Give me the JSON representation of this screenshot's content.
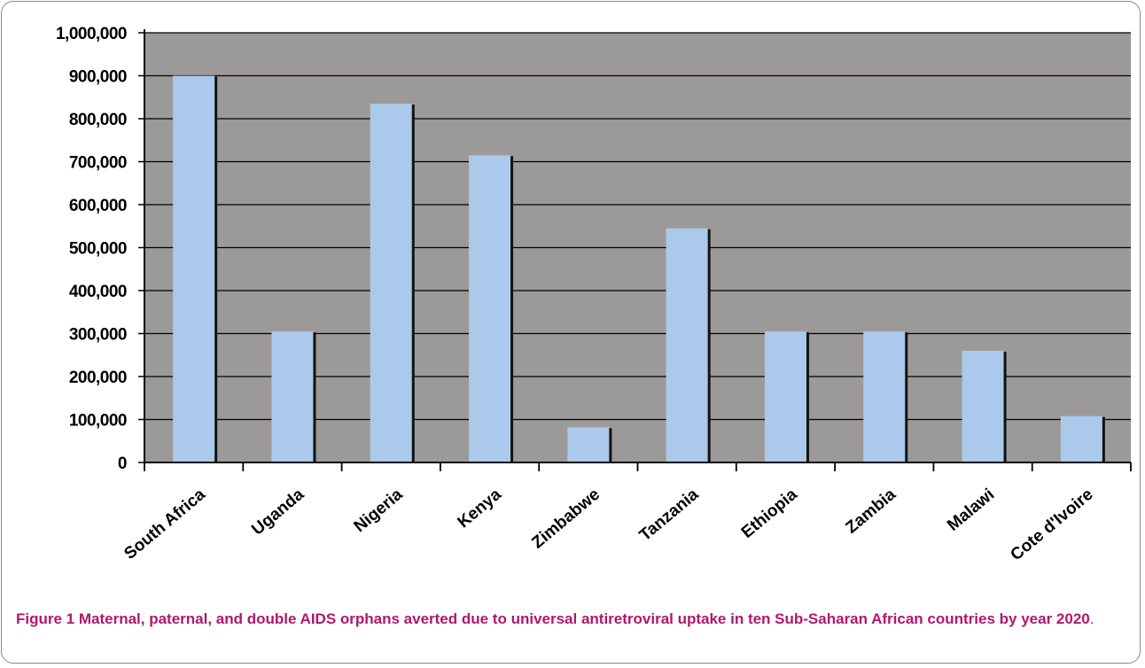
{
  "chart_data": {
    "type": "bar",
    "categories": [
      "South Africa",
      "Uganda",
      "Nigeria",
      "Kenya",
      "Zimbabwe",
      "Tanzania",
      "Ethiopia",
      "Zambia",
      "Malawi",
      "Cote d'Ivoire"
    ],
    "values": [
      900000,
      305000,
      835000,
      715000,
      82000,
      545000,
      305000,
      305000,
      260000,
      108000
    ],
    "ylim": [
      0,
      1000000
    ],
    "yticks": [
      "0",
      "100,000",
      "200,000",
      "300,000",
      "400,000",
      "500,000",
      "600,000",
      "700,000",
      "800,000",
      "900,000",
      "1,000,000"
    ],
    "grid": true,
    "colors": {
      "plot_bg": "#9c9a98",
      "bar": "#abc9ea",
      "bar_shadow": "#111111",
      "grid": "#000000"
    },
    "title": "",
    "xlabel": "",
    "ylabel": ""
  },
  "caption": {
    "label": "Figure 1",
    "text": " Maternal, paternal, and double AIDS orphans averted due to universal antiretroviral uptake in ten Sub-Saharan African countries by year 2020",
    "end": "."
  }
}
